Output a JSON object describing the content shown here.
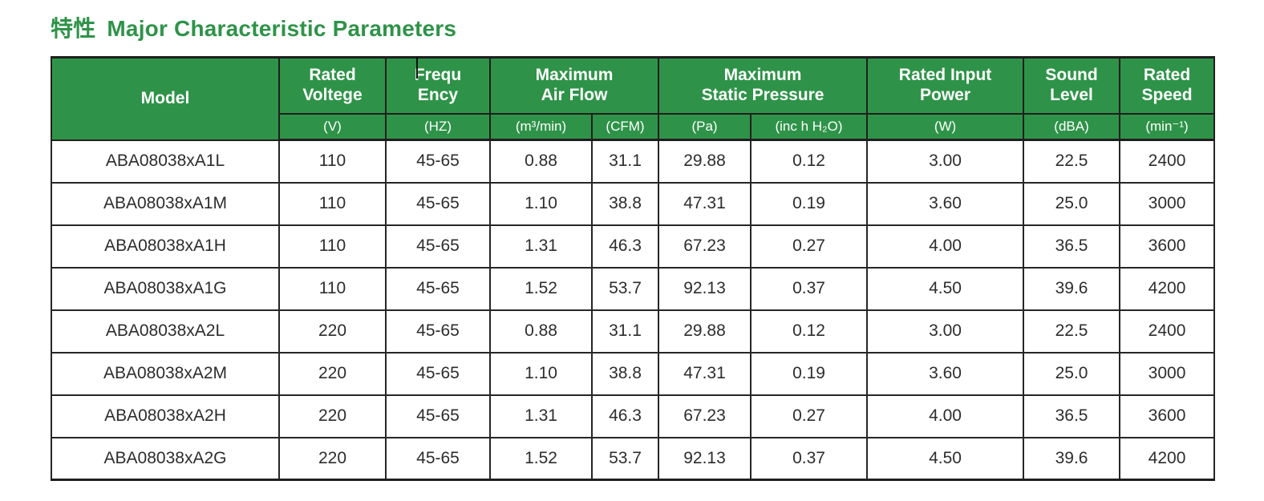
{
  "page": {
    "title_cjk": "特性",
    "title_en": "Major Characteristic Parameters"
  },
  "colors": {
    "header_green": "#2E9348",
    "title_green": "#2E9348",
    "border_dark": "#1F1F1F",
    "body_text": "#2D2D2D"
  },
  "table": {
    "header_groups": [
      {
        "label": "Model",
        "line1": "Model",
        "line2": ""
      },
      {
        "label": "Rated Voltege",
        "line1": "Rated",
        "line2": "Voltege"
      },
      {
        "label": "Frequ Ency",
        "line1": "Frequ",
        "line2": "Ency"
      },
      {
        "label": "Maximum Air Flow",
        "line1": "Maximum",
        "line2": "Air Flow"
      },
      {
        "label": "Maximum Static Pressure",
        "line1": "Maximum",
        "line2": "Static Pressure"
      },
      {
        "label": "Rated Input Power",
        "line1": "Rated Input",
        "line2": "Power"
      },
      {
        "label": "Sound Level",
        "line1": "Sound",
        "line2": "Level"
      },
      {
        "label": "Rated Speed",
        "line1": "Rated",
        "line2": "Speed"
      }
    ],
    "subheaders": [
      "(V)",
      "(HZ)",
      "(m³/min)",
      "(CFM)",
      "(Pa)",
      "(inc h H₂O)",
      "(W)",
      "(dBA)",
      "(min⁻¹)"
    ],
    "rows": [
      [
        "ABA08038xA1L",
        "110",
        "45-65",
        "0.88",
        "31.1",
        "29.88",
        "0.12",
        "3.00",
        "22.5",
        "2400"
      ],
      [
        "ABA08038xA1M",
        "110",
        "45-65",
        "1.10",
        "38.8",
        "47.31",
        "0.19",
        "3.60",
        "25.0",
        "3000"
      ],
      [
        "ABA08038xA1H",
        "110",
        "45-65",
        "1.31",
        "46.3",
        "67.23",
        "0.27",
        "4.00",
        "36.5",
        "3600"
      ],
      [
        "ABA08038xA1G",
        "110",
        "45-65",
        "1.52",
        "53.7",
        "92.13",
        "0.37",
        "4.50",
        "39.6",
        "4200"
      ],
      [
        "ABA08038xA2L",
        "220",
        "45-65",
        "0.88",
        "31.1",
        "29.88",
        "0.12",
        "3.00",
        "22.5",
        "2400"
      ],
      [
        "ABA08038xA2M",
        "220",
        "45-65",
        "1.10",
        "38.8",
        "47.31",
        "0.19",
        "3.60",
        "25.0",
        "3000"
      ],
      [
        "ABA08038xA2H",
        "220",
        "45-65",
        "1.31",
        "46.3",
        "67.23",
        "0.27",
        "4.00",
        "36.5",
        "3600"
      ],
      [
        "ABA08038xA2G",
        "220",
        "45-65",
        "1.52",
        "53.7",
        "92.13",
        "0.37",
        "4.50",
        "39.6",
        "4200"
      ]
    ]
  }
}
